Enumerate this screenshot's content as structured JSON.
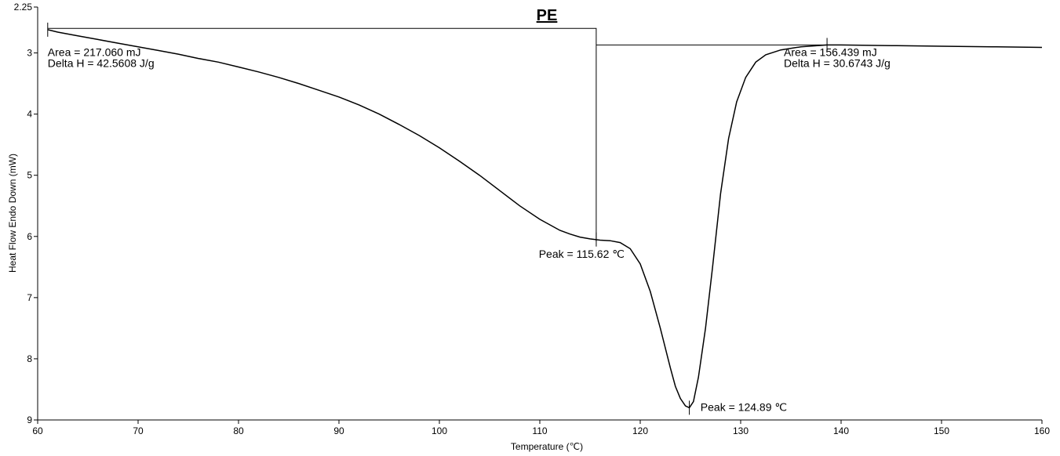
{
  "chart_data": {
    "type": "line",
    "title": "PE",
    "xlabel": "Temperature (℃)",
    "ylabel": "Heat Flow Endo Down (mW)",
    "xlim": [
      60,
      160
    ],
    "ylim": [
      2.25,
      9
    ],
    "y_inverted": true,
    "grid": false,
    "x_ticks": [
      "60",
      "70",
      "80",
      "90",
      "100",
      "110",
      "120",
      "130",
      "140",
      "150",
      "160"
    ],
    "y_ticks": [
      "2.25",
      "3",
      "4",
      "5",
      "6",
      "7",
      "8",
      "9"
    ],
    "series": [
      {
        "x": [
          61,
          62,
          64,
          66,
          68,
          70,
          72,
          74,
          76,
          78,
          80,
          82,
          84,
          86,
          88,
          90,
          92,
          94,
          96,
          98,
          100,
          102,
          104,
          106,
          108,
          110,
          112,
          113,
          114,
          115,
          116,
          117,
          118,
          119,
          120,
          121,
          122,
          123,
          123.5,
          124,
          124.5,
          124.89,
          125.3,
          125.8,
          126.5,
          127.2,
          128,
          128.8,
          129.6,
          130.5,
          131.5,
          132.5,
          134,
          136,
          138.6,
          140,
          145,
          150,
          155,
          160
        ],
        "y": [
          2.62,
          2.66,
          2.72,
          2.78,
          2.84,
          2.9,
          2.96,
          3.02,
          3.09,
          3.15,
          3.23,
          3.31,
          3.4,
          3.5,
          3.61,
          3.72,
          3.85,
          4.0,
          4.17,
          4.35,
          4.55,
          4.77,
          5.0,
          5.25,
          5.5,
          5.72,
          5.9,
          5.96,
          6.01,
          6.04,
          6.06,
          6.07,
          6.1,
          6.2,
          6.45,
          6.9,
          7.5,
          8.15,
          8.45,
          8.65,
          8.77,
          8.8,
          8.7,
          8.3,
          7.5,
          6.5,
          5.3,
          4.4,
          3.8,
          3.4,
          3.15,
          3.03,
          2.95,
          2.9,
          2.87,
          2.87,
          2.88,
          2.89,
          2.9,
          2.91
        ]
      }
    ],
    "annotations": [
      {
        "text": "Area = 217.060 mJ",
        "x": 61,
        "y": 3.05
      },
      {
        "text": "Delta H = 42.5608 J/g",
        "x": 61,
        "y": 3.23
      },
      {
        "text": "Peak = 115.62 ℃",
        "x": 109.9,
        "y": 6.35
      },
      {
        "text": "Area = 156.439 mJ",
        "x": 134.3,
        "y": 3.05
      },
      {
        "text": "Delta H = 30.6743 J/g",
        "x": 134.3,
        "y": 3.23
      },
      {
        "text": "Peak = 124.89 ℃",
        "x": 126,
        "y": 8.85
      }
    ],
    "baselines": [
      {
        "x": [
          61,
          115.62,
          115.62
        ],
        "y": [
          2.6,
          2.6,
          6.08
        ]
      },
      {
        "x": [
          115.62,
          138.6
        ],
        "y": [
          2.87,
          2.87
        ]
      }
    ],
    "markers": [
      {
        "x": 61,
        "y": 2.62
      },
      {
        "x": 115.62,
        "y": 6.05
      },
      {
        "x": 124.89,
        "y": 8.8
      },
      {
        "x": 138.6,
        "y": 2.87
      }
    ]
  }
}
